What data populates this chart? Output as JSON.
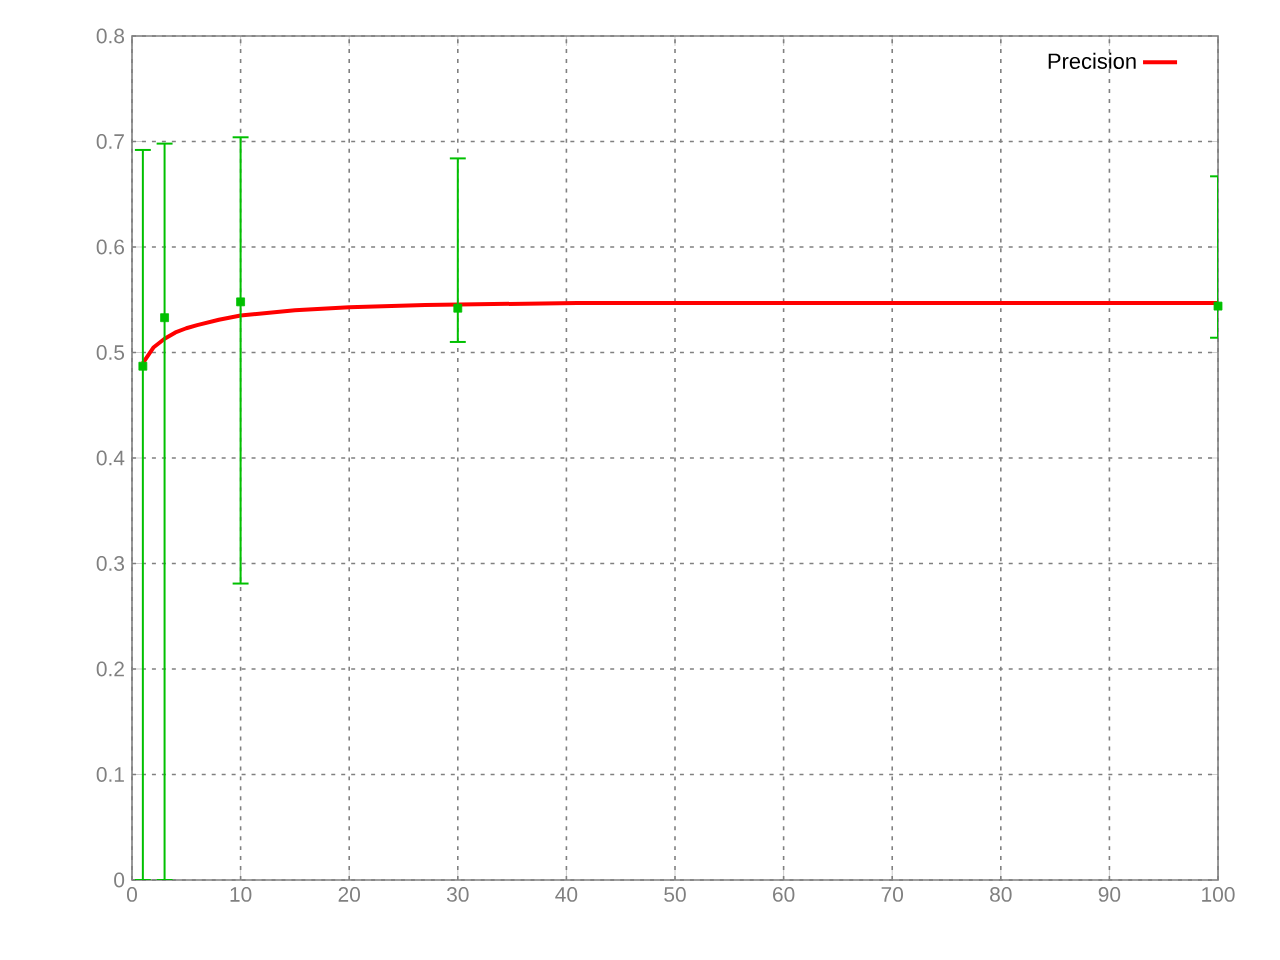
{
  "chart_data": {
    "type": "line",
    "xlim": [
      0,
      100
    ],
    "ylim": [
      0,
      0.8
    ],
    "xticks": [
      0,
      10,
      20,
      30,
      40,
      50,
      60,
      70,
      80,
      90,
      100
    ],
    "yticks": [
      0,
      0.1,
      0.2,
      0.3,
      0.4,
      0.5,
      0.6,
      0.7,
      0.8
    ],
    "grid": true,
    "legend": "top right",
    "series": [
      {
        "name": "Precision",
        "color": "#ff0000",
        "x": [
          1,
          2,
          3,
          4,
          5,
          6,
          8,
          10,
          12,
          15,
          20,
          27,
          41,
          60,
          100
        ],
        "values": [
          0.49,
          0.505,
          0.513,
          0.519,
          0.523,
          0.526,
          0.531,
          0.535,
          0.537,
          0.54,
          0.543,
          0.545,
          0.547,
          0.547,
          0.547
        ]
      },
      {
        "type": "scatter",
        "marker": "square",
        "color": "#00c000",
        "x": [
          1,
          3,
          10,
          30,
          100
        ],
        "values": [
          0.487,
          0.533,
          0.548,
          0.542,
          0.544
        ],
        "errors": [
          [
            0,
            0.692
          ],
          [
            0,
            0.698
          ],
          [
            0.281,
            0.704
          ],
          [
            0.51,
            0.684
          ],
          [
            0.514,
            0.667
          ]
        ]
      }
    ]
  }
}
